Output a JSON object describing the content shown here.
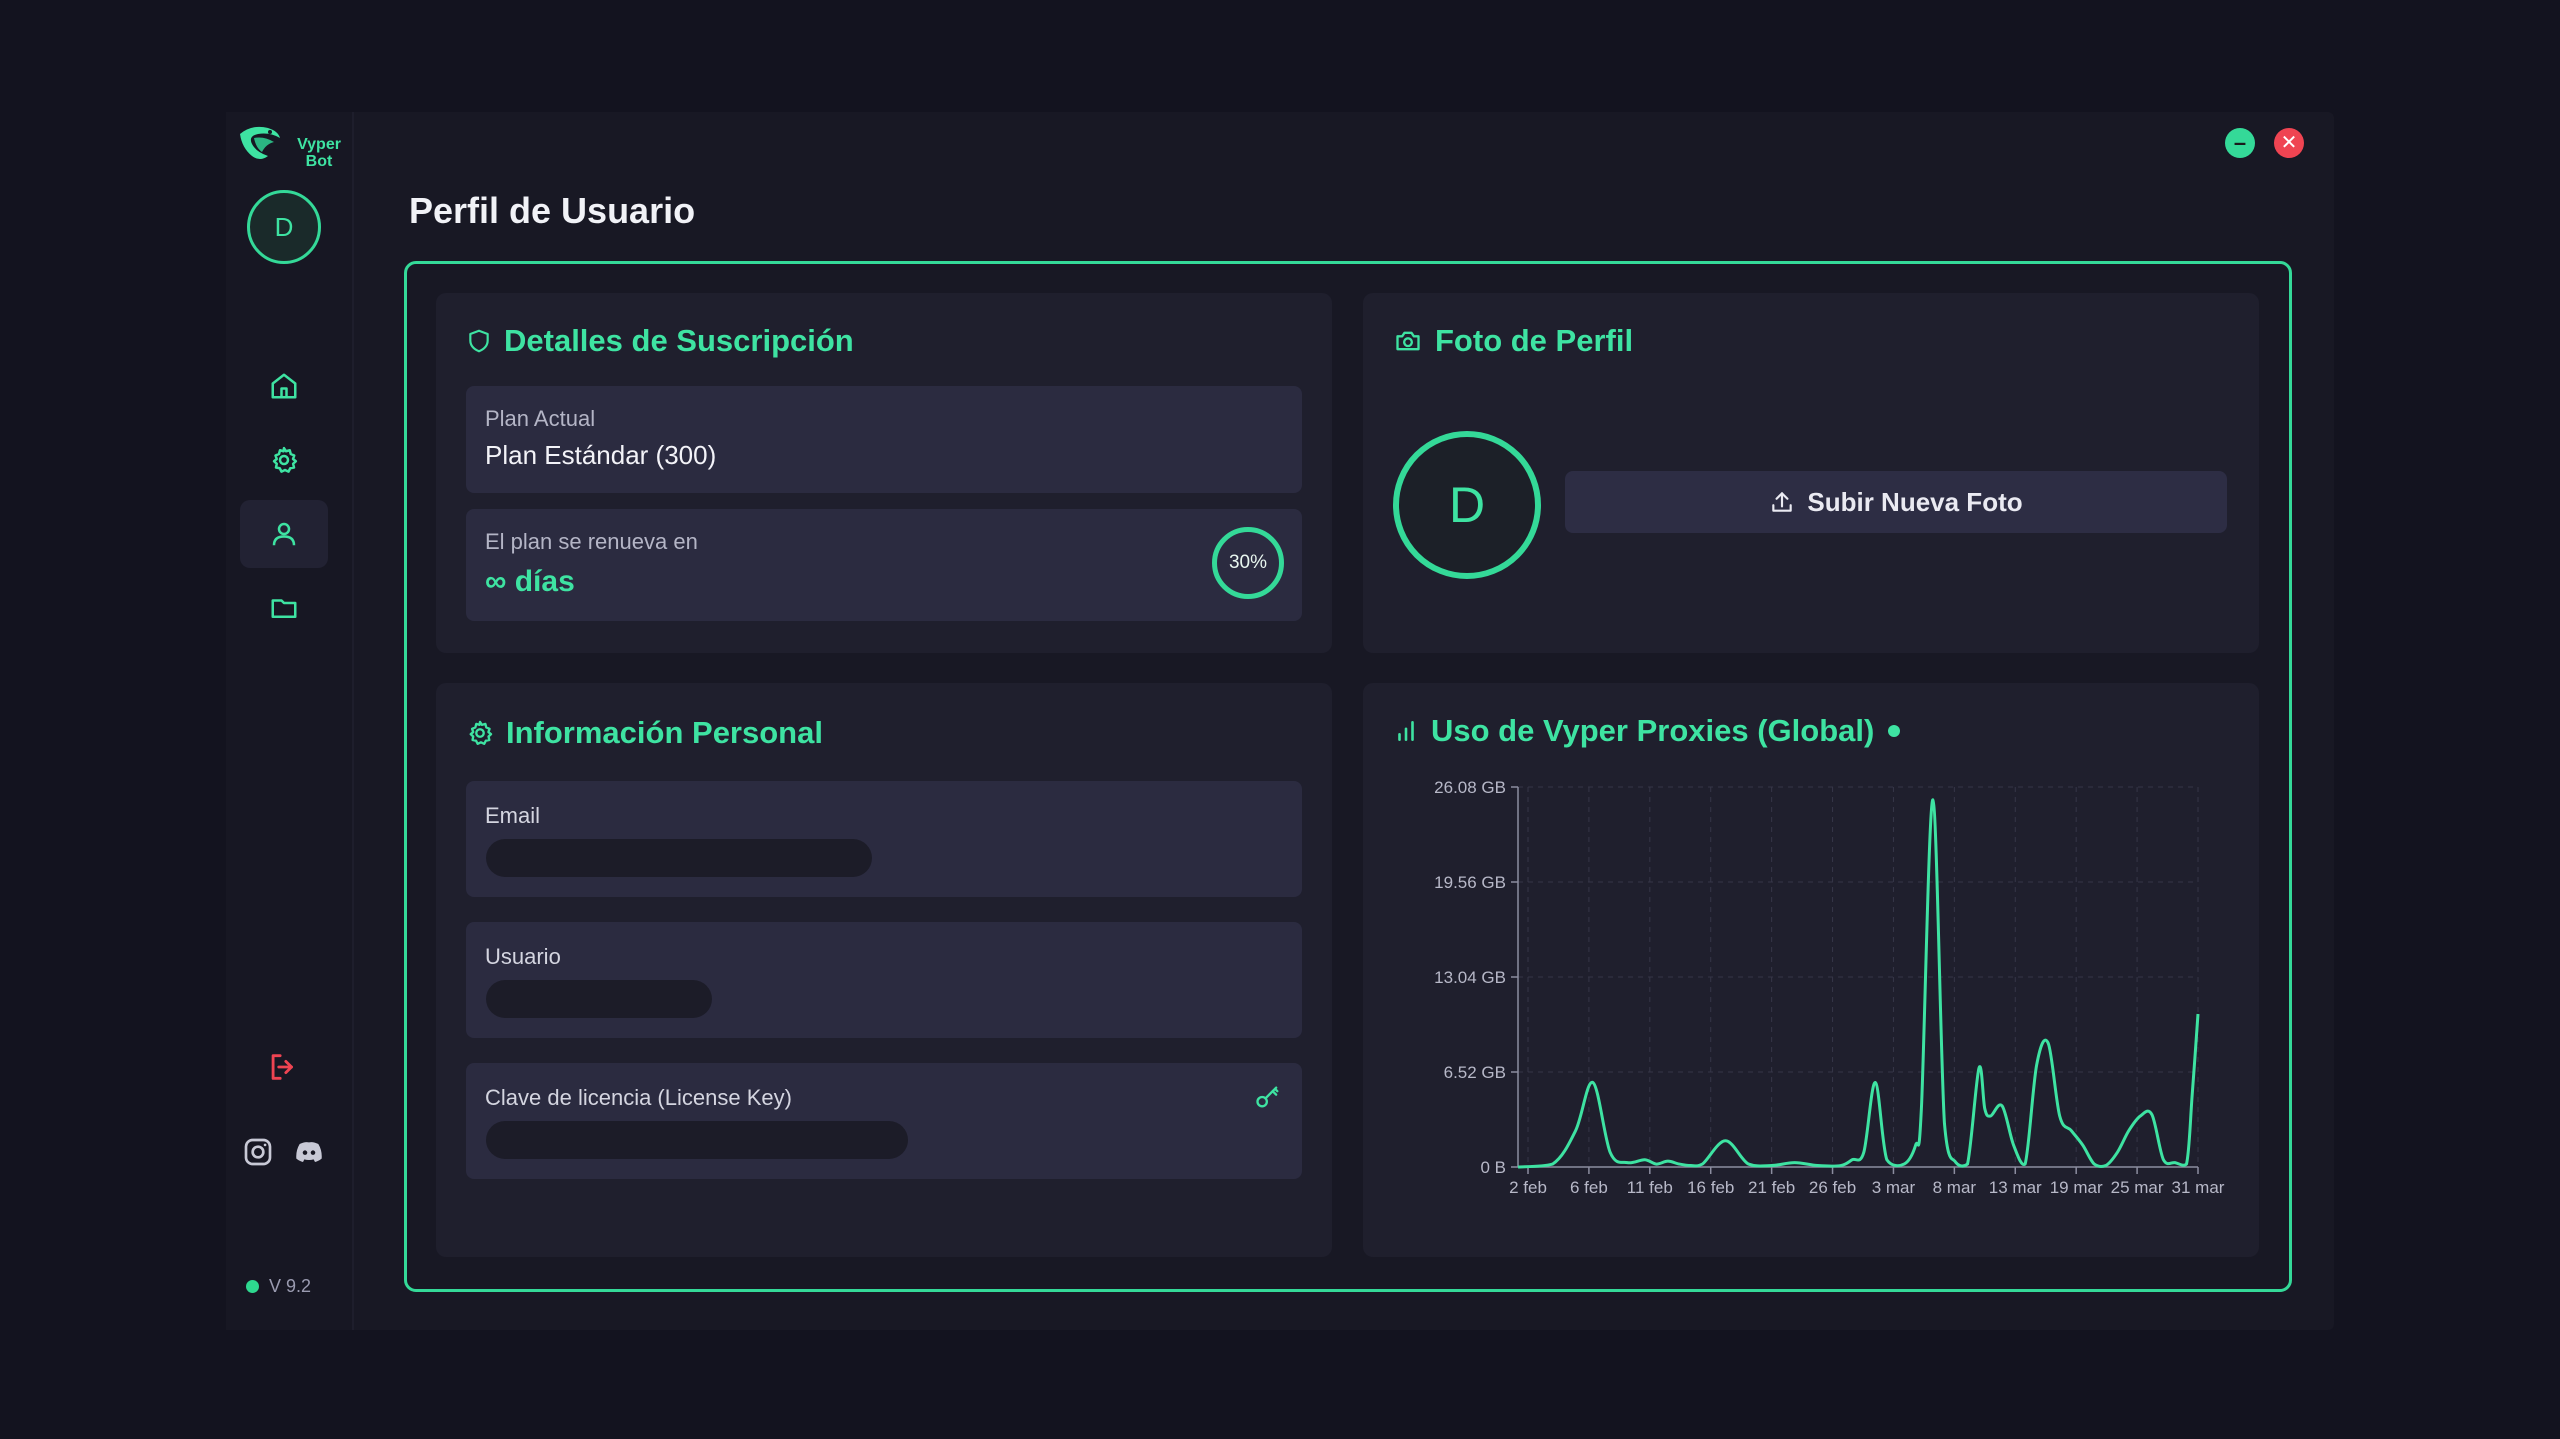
{
  "app": {
    "name_line1": "Vyper",
    "name_line2": "Bot",
    "version": "V 9.2",
    "accent": "#34d998",
    "danger": "#ef4452"
  },
  "sidebar": {
    "avatar_initial": "D",
    "items": [
      {
        "name": "home",
        "icon": "home-icon"
      },
      {
        "name": "settings",
        "icon": "gear-icon"
      },
      {
        "name": "profile",
        "icon": "user-icon",
        "active": true
      },
      {
        "name": "files",
        "icon": "folder-icon"
      }
    ],
    "logout_icon": "logout-icon",
    "social_icons": [
      "instagram-icon",
      "discord-icon"
    ]
  },
  "window_controls": {
    "minimize": "–",
    "close": "✕"
  },
  "page": {
    "title": "Perfil de Usuario"
  },
  "subscription": {
    "title": "Detalles de Suscripción",
    "plan_label": "Plan Actual",
    "plan_value": "Plan Estándar (300)",
    "renew_label": "El plan se renueva en",
    "renew_value": "∞ días",
    "progress": "30%"
  },
  "photo": {
    "title": "Foto de Perfil",
    "avatar_initial": "D",
    "upload_label": "Subir Nueva Foto"
  },
  "personal": {
    "title": "Información Personal",
    "email_label": "Email",
    "user_label": "Usuario",
    "license_label": "Clave de licencia (License Key)"
  },
  "usage": {
    "title": "Uso de Vyper Proxies (Global)"
  },
  "chart_data": {
    "type": "line",
    "title": "Uso de Vyper Proxies (Global)",
    "y_ticks": [
      "0 B",
      "6.52 GB",
      "13.04 GB",
      "19.56 GB",
      "26.08 GB"
    ],
    "ylim": [
      0,
      26.08
    ],
    "x_ticks": [
      "2 feb",
      "6 feb",
      "11 feb",
      "16 feb",
      "21 feb",
      "26 feb",
      "3 mar",
      "8 mar",
      "13 mar",
      "19 mar",
      "25 mar",
      "31 mar"
    ],
    "grid": true,
    "series": [
      {
        "x": [
          0,
          3,
          5,
          6.5,
          8,
          9.5,
          11,
          12,
          13,
          14,
          15,
          16,
          18,
          20,
          22,
          24,
          26,
          28,
          29,
          30,
          31,
          32,
          33.5,
          34.5,
          35,
          36,
          37,
          38,
          39,
          40,
          40.5,
          41,
          42,
          43,
          44,
          45,
          46,
          47,
          48,
          49,
          50,
          51,
          52,
          53,
          54,
          55,
          56,
          57,
          58,
          58.5,
          59
        ],
        "y": [
          0,
          0.2,
          2.5,
          5.8,
          1.0,
          0.3,
          0.5,
          0.2,
          0.4,
          0.2,
          0.1,
          0.2,
          1.8,
          0.2,
          0.1,
          0.3,
          0.1,
          0.1,
          0.5,
          1.0,
          5.8,
          0.5,
          0.2,
          1.5,
          4.0,
          25.2,
          3.0,
          0.3,
          0.2,
          6.8,
          4.0,
          3.5,
          4.2,
          1.5,
          0.2,
          7.0,
          8.5,
          3.5,
          2.5,
          1.5,
          0.2,
          0.1,
          1.0,
          2.5,
          3.5,
          3.6,
          0.5,
          0.3,
          0.2,
          5.0,
          10.5
        ]
      }
    ]
  }
}
